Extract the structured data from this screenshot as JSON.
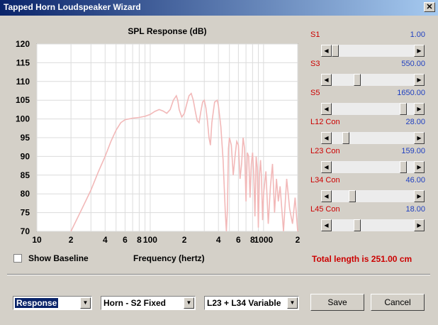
{
  "window": {
    "title": "Tapped Horn Loudspeaker Wizard",
    "close_label": "✕"
  },
  "chart_data": {
    "type": "line",
    "title": "SPL Response (dB)",
    "xlabel": "Frequency (hertz)",
    "ylabel": "",
    "x_scale": "log",
    "xlim": [
      10,
      2000
    ],
    "ylim": [
      70,
      120
    ],
    "x_ticks": [
      10,
      20,
      40,
      60,
      80,
      100,
      200,
      400,
      600,
      800,
      1000,
      2000
    ],
    "x_tick_labels": [
      "10",
      "2",
      "4",
      "6",
      "8",
      "100",
      "2",
      "4",
      "6",
      "8",
      "1000",
      "2"
    ],
    "y_ticks": [
      70,
      75,
      80,
      85,
      90,
      95,
      100,
      105,
      110,
      115,
      120
    ],
    "grid": true,
    "series": [
      {
        "color": "#f2b8b8",
        "x": [
          20,
          25,
          30,
          35,
          40,
          45,
          50,
          55,
          60,
          70,
          80,
          90,
          100,
          110,
          120,
          130,
          140,
          150,
          160,
          170,
          175,
          180,
          190,
          200,
          210,
          220,
          230,
          240,
          250,
          260,
          270,
          280,
          290,
          300,
          310,
          320,
          330,
          340,
          350,
          370,
          390,
          400,
          420,
          440,
          460,
          470,
          480,
          490,
          500,
          520,
          540,
          560,
          580,
          600,
          620,
          640,
          660,
          680,
          700,
          720,
          740,
          760,
          780,
          800,
          820,
          840,
          860,
          880,
          900,
          920,
          940,
          960,
          980,
          1000,
          1050,
          1100,
          1150,
          1200,
          1250,
          1300,
          1350,
          1400,
          1500,
          1600,
          1700,
          1800,
          1900,
          2000
        ],
        "y": [
          70,
          76,
          81,
          86,
          90,
          94,
          97,
          99,
          99.8,
          100.2,
          100.4,
          100.7,
          101.2,
          102,
          102.5,
          102.1,
          101.5,
          102.5,
          105,
          106.2,
          105,
          102.5,
          100.5,
          101.5,
          104,
          106.2,
          106.8,
          105,
          102,
          99.5,
          99,
          102,
          104.5,
          105,
          103,
          99.5,
          95,
          93,
          99,
          104.5,
          105,
          103.5,
          98,
          89,
          75,
          70,
          76,
          92,
          95,
          93,
          85,
          90,
          94,
          93,
          84,
          88,
          95,
          92,
          78,
          91,
          90,
          79,
          88,
          91,
          85,
          74,
          90,
          87,
          71,
          85,
          89,
          84,
          73,
          80,
          86,
          72,
          82,
          88,
          75,
          84,
          78,
          82,
          70,
          84,
          76,
          72,
          79,
          70
        ]
      }
    ]
  },
  "sliders": [
    {
      "label": "S1",
      "value": "1.00",
      "fraction": 0.0
    },
    {
      "label": "S3",
      "value": "550.00",
      "fraction": 0.29
    },
    {
      "label": "S5",
      "value": "1650.00",
      "fraction": 0.91
    },
    {
      "label": "L12 Con",
      "value": "28.00",
      "fraction": 0.14
    },
    {
      "label": "L23 Con",
      "value": "159.00",
      "fraction": 0.91
    },
    {
      "label": "L34 Con",
      "value": "46.00",
      "fraction": 0.23
    },
    {
      "label": "L45 Con",
      "value": "18.00",
      "fraction": 0.29
    }
  ],
  "show_baseline_label": "Show Baseline",
  "show_baseline_checked": false,
  "total_length": "Total length is 251.00 cm",
  "combos": {
    "view": "Response",
    "horn": "Horn - S2 Fixed",
    "variable": "L23 + L34 Variable"
  },
  "buttons": {
    "save": "Save",
    "cancel": "Cancel"
  }
}
